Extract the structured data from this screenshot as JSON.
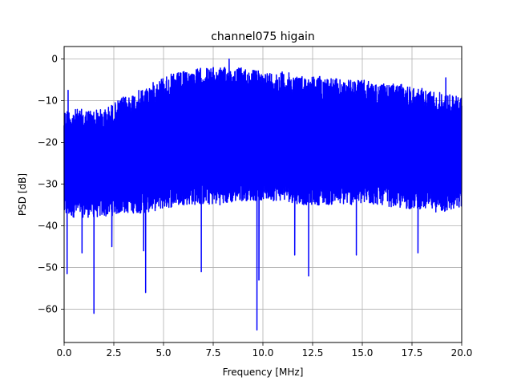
{
  "chart_data": {
    "type": "line",
    "title": "channel075 higain",
    "xlabel": "Frequency [MHz]",
    "ylabel": "PSD [dB]",
    "xlim": [
      0,
      20
    ],
    "ylim": [
      -68,
      3
    ],
    "xticks": [
      0,
      2.5,
      5,
      7.5,
      10,
      12.5,
      15,
      17.5,
      20
    ],
    "xtick_labels": [
      "0.0",
      "2.5",
      "5.0",
      "7.5",
      "10.0",
      "12.5",
      "15.0",
      "17.5",
      "20.0"
    ],
    "yticks": [
      0,
      -10,
      -20,
      -30,
      -40,
      -50,
      -60
    ],
    "ytick_labels": [
      "0",
      "−10",
      "−20",
      "−30",
      "−40",
      "−50",
      "−60"
    ],
    "grid": true,
    "series": [
      {
        "color": "#0000ff",
        "envelope": {
          "x": [
            0.0,
            1,
            2,
            3,
            4,
            5,
            6,
            7,
            8,
            9,
            10,
            11,
            12,
            13,
            14,
            15,
            16,
            17,
            18,
            19,
            20
          ],
          "upper": [
            -12,
            -12,
            -12,
            -9,
            -7,
            -4,
            -3,
            -2,
            -2,
            -2,
            -3,
            -3,
            -4,
            -4,
            -5,
            -5,
            -6,
            -6,
            -7,
            -8,
            -9
          ],
          "center": [
            -23,
            -23,
            -22,
            -20,
            -18,
            -15,
            -14,
            -13,
            -13,
            -13,
            -14,
            -14,
            -15,
            -15,
            -16,
            -16,
            -17,
            -17,
            -18,
            -19,
            -20
          ],
          "lower": [
            -38,
            -38,
            -38,
            -37,
            -37,
            -36,
            -35,
            -35,
            -35,
            -34,
            -34,
            -34,
            -35,
            -35,
            -35,
            -35,
            -35,
            -36,
            -36,
            -37,
            -36
          ]
        },
        "peaks": [
          {
            "x": 0.2,
            "y": -7.5
          },
          {
            "x": 8.3,
            "y": 0.0
          },
          {
            "x": 19.2,
            "y": -4.5
          }
        ],
        "dips": [
          {
            "x": 0.15,
            "y": -51.5
          },
          {
            "x": 0.9,
            "y": -46.5
          },
          {
            "x": 1.5,
            "y": -61.0
          },
          {
            "x": 2.4,
            "y": -45.0
          },
          {
            "x": 4.0,
            "y": -46.0
          },
          {
            "x": 4.1,
            "y": -56.0
          },
          {
            "x": 6.9,
            "y": -51.0
          },
          {
            "x": 9.7,
            "y": -65.0
          },
          {
            "x": 9.8,
            "y": -53.0
          },
          {
            "x": 11.6,
            "y": -47.0
          },
          {
            "x": 12.3,
            "y": -52.0
          },
          {
            "x": 14.7,
            "y": -47.0
          },
          {
            "x": 17.8,
            "y": -46.5
          }
        ]
      }
    ]
  }
}
